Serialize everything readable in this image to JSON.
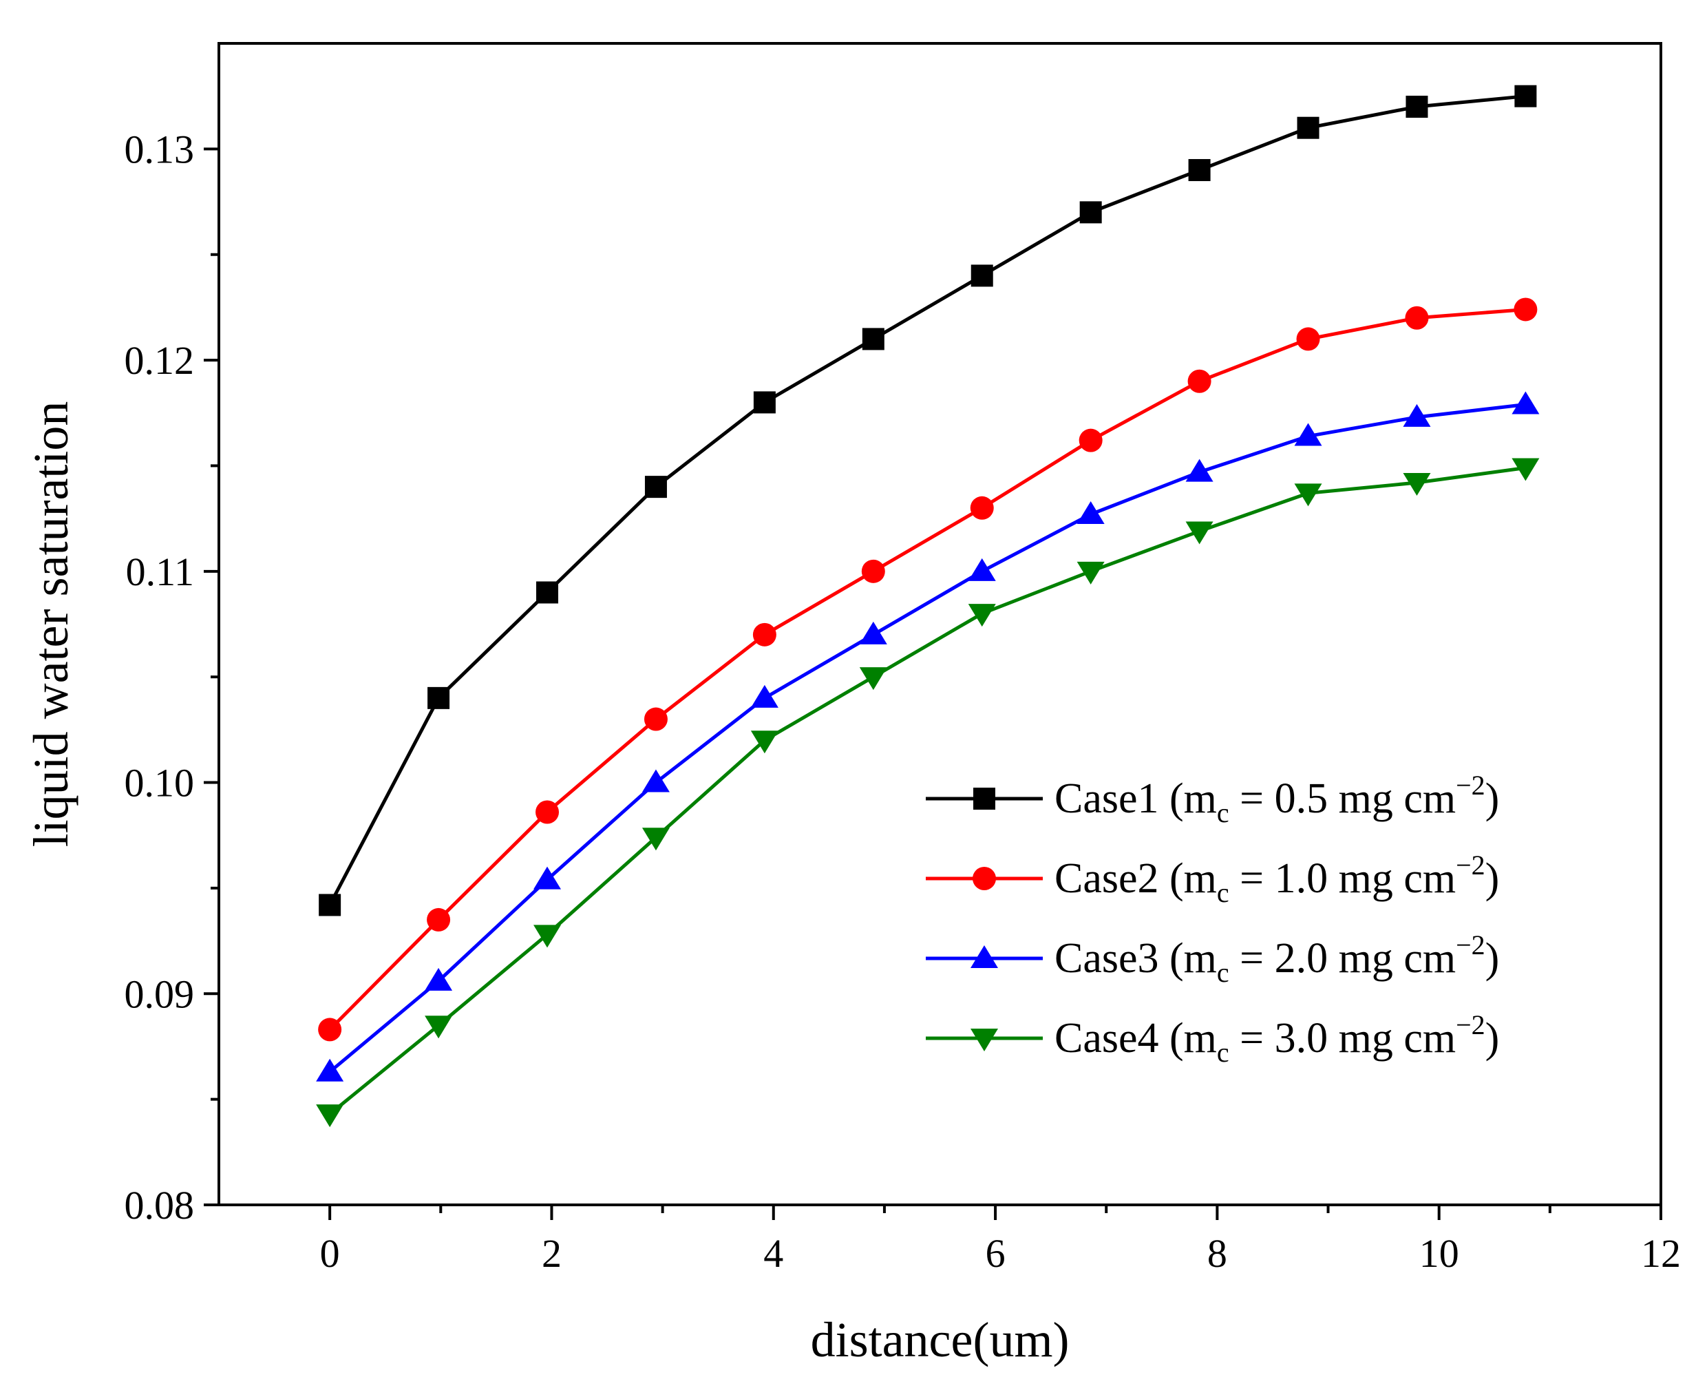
{
  "chart_data": {
    "type": "line",
    "xlabel": "distance(um)",
    "ylabel": "liquid water saturation",
    "xlim": [
      -1,
      12
    ],
    "ylim": [
      0.08,
      0.135
    ],
    "x_ticks": [
      0,
      2,
      4,
      6,
      8,
      10,
      12
    ],
    "x_tick_labels": [
      "0",
      "2",
      "4",
      "6",
      "8",
      "10",
      "12"
    ],
    "y_ticks": [
      0.08,
      0.09,
      0.1,
      0.11,
      0.12,
      0.13
    ],
    "y_tick_labels": [
      "0.08",
      "0.09",
      "0.10",
      "0.11",
      "0.12",
      "0.13"
    ],
    "y_minor_ticks": [
      0.085,
      0.095,
      0.105,
      0.115,
      0.125
    ],
    "x_minor_ticks": [
      1,
      3,
      5,
      7,
      9,
      11
    ],
    "grid": false,
    "legend_position": "lower-right",
    "x": [
      0,
      0.98,
      1.96,
      2.94,
      3.92,
      4.9,
      5.88,
      6.86,
      7.84,
      8.82,
      9.8,
      10.78
    ],
    "series": [
      {
        "name": "Case1",
        "legend": {
          "prefix": "Case1 (m",
          "sub": "c",
          "middle": " = 0.5 mg cm",
          "sup": "−2",
          "suffix": ")"
        },
        "color": "#000000",
        "marker": "square",
        "values": [
          0.0942,
          0.104,
          0.109,
          0.114,
          0.118,
          0.121,
          0.124,
          0.127,
          0.129,
          0.131,
          0.132,
          0.1325
        ]
      },
      {
        "name": "Case2",
        "legend": {
          "prefix": "Case2 (m",
          "sub": "c",
          "middle": " = 1.0 mg cm",
          "sup": "−2",
          "suffix": ")"
        },
        "color": "#ff0000",
        "marker": "circle",
        "values": [
          0.0883,
          0.0935,
          0.0986,
          0.103,
          0.107,
          0.11,
          0.113,
          0.1162,
          0.119,
          0.121,
          0.122,
          0.1224
        ]
      },
      {
        "name": "Case3",
        "legend": {
          "prefix": "Case3 (m",
          "sub": "c",
          "middle": " = 2.0 mg cm",
          "sup": "−2",
          "suffix": ")"
        },
        "color": "#0000ff",
        "marker": "triangle-up",
        "values": [
          0.0863,
          0.0906,
          0.0954,
          0.1,
          0.104,
          0.107,
          0.11,
          0.1127,
          0.1147,
          0.1164,
          0.1173,
          0.1179
        ]
      },
      {
        "name": "Case4",
        "legend": {
          "prefix": "Case4 (m",
          "sub": "c",
          "middle": " = 3.0 mg cm",
          "sup": "−2",
          "suffix": ")"
        },
        "color": "#008000",
        "marker": "triangle-down",
        "values": [
          0.0843,
          0.0885,
          0.0928,
          0.0974,
          0.102,
          0.105,
          0.108,
          0.11,
          0.1119,
          0.1137,
          0.1142,
          0.1149
        ]
      }
    ]
  }
}
